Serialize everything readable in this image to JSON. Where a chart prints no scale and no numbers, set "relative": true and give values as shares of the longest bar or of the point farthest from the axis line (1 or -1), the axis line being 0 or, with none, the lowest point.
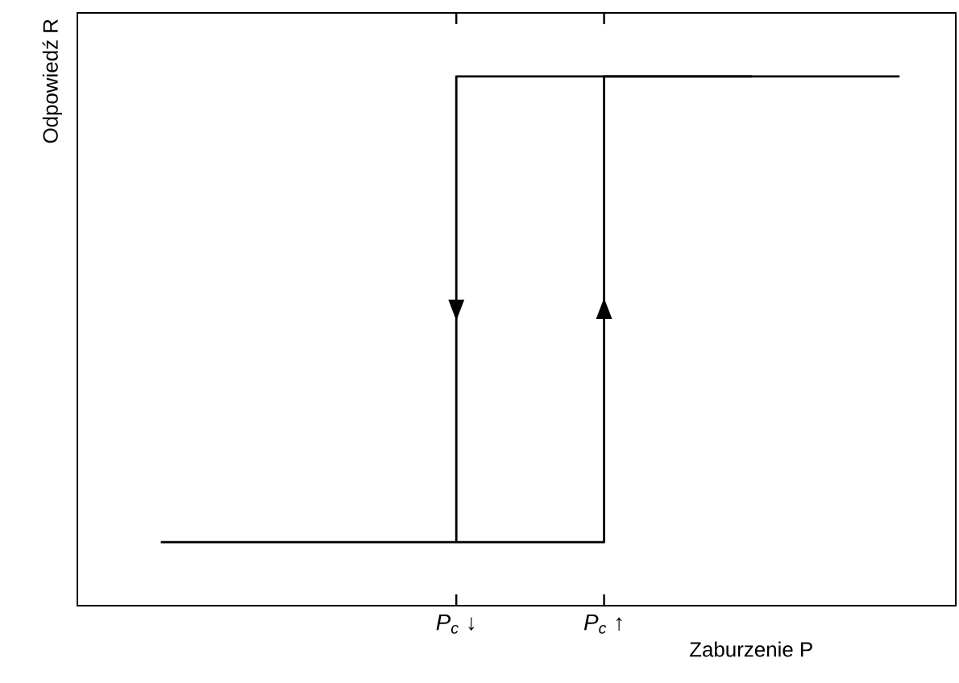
{
  "chart_data": {
    "type": "step",
    "relative": true,
    "xlabel": "Zaburzenie P",
    "ylabel": "Odpowiedź R",
    "categories": [
      null,
      null,
      "P$_{c}$ ↓",
      "P$_{c}$ ↑",
      null,
      null
    ],
    "tick_labels": "x",
    "marker": "none",
    "line_style": "solid",
    "series": [
      {
        "color": "#000000",
        "values": [
          null,
          null,
          0.12,
          1,
          1,
          1
        ]
      },
      {
        "color": "#000000",
        "values": [
          0.12,
          0.12,
          0.12,
          0.12,
          1,
          null
        ]
      }
    ]
  }
}
